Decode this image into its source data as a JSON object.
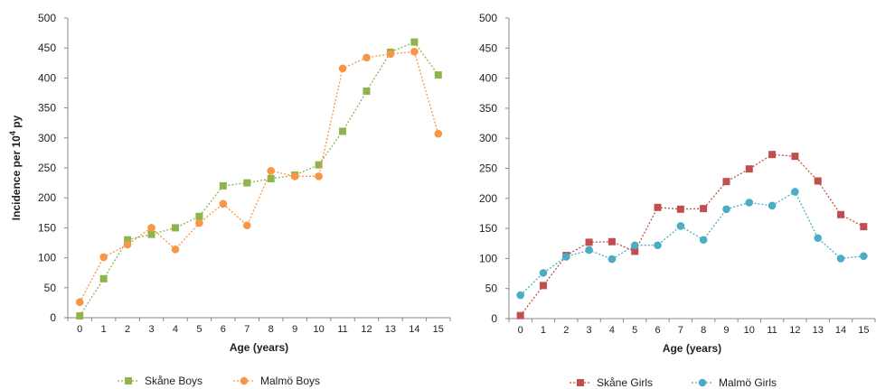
{
  "ylabel": {
    "main": "Incidence  per 10",
    "sup": "4",
    "tail": " py"
  },
  "chart_data": [
    {
      "type": "line",
      "xlabel": "Age  (years)",
      "x": [
        0,
        1,
        2,
        3,
        4,
        5,
        6,
        7,
        8,
        9,
        10,
        11,
        12,
        13,
        14,
        15
      ],
      "ylim": [
        0,
        500
      ],
      "yticks": [
        0,
        50,
        100,
        150,
        200,
        250,
        300,
        350,
        400,
        450,
        500
      ],
      "grid": false,
      "legend_position": "bottom",
      "series": [
        {
          "name": "Skåne Boys",
          "color": "#8db54b",
          "marker": "square",
          "values": [
            3,
            65,
            130,
            139,
            150,
            169,
            220,
            225,
            232,
            238,
            255,
            311,
            378,
            443,
            460,
            405
          ]
        },
        {
          "name": "Malmö Boys",
          "color": "#f79646",
          "marker": "circle",
          "values": [
            26,
            101,
            122,
            150,
            114,
            158,
            190,
            154,
            245,
            236,
            236,
            416,
            434,
            440,
            444,
            307
          ]
        }
      ]
    },
    {
      "type": "line",
      "xlabel": "Age  (years)",
      "x": [
        0,
        1,
        2,
        3,
        4,
        5,
        6,
        7,
        8,
        9,
        10,
        11,
        12,
        13,
        14,
        15
      ],
      "ylim": [
        0,
        500
      ],
      "yticks": [
        0,
        50,
        100,
        150,
        200,
        250,
        300,
        350,
        400,
        450,
        500
      ],
      "grid": false,
      "legend_position": "bottom",
      "series": [
        {
          "name": "Skåne Girls",
          "color": "#c0504d",
          "marker": "square",
          "values": [
            5,
            55,
            105,
            127,
            128,
            112,
            185,
            182,
            183,
            228,
            249,
            273,
            270,
            229,
            173,
            153
          ]
        },
        {
          "name": "Malmö Girls",
          "color": "#4bacc6",
          "marker": "circle",
          "values": [
            39,
            76,
            103,
            114,
            99,
            122,
            122,
            154,
            131,
            182,
            193,
            188,
            211,
            134,
            100,
            104
          ]
        }
      ]
    }
  ]
}
